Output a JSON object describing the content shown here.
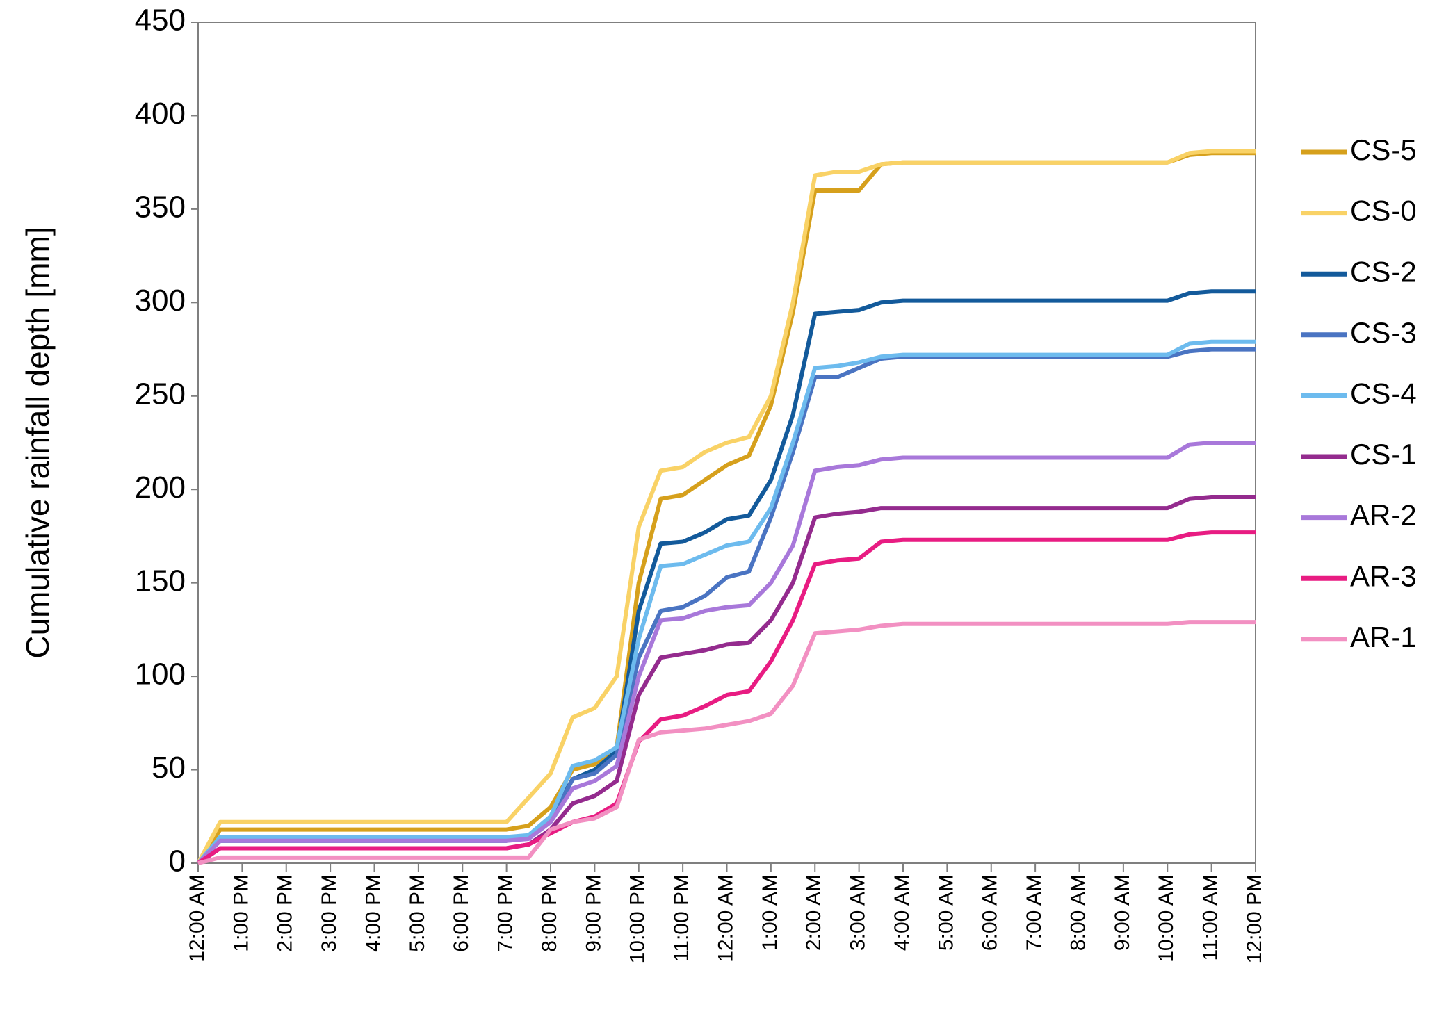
{
  "chart_data": {
    "type": "line",
    "y_label": "Cumulative rainfall depth [mm]",
    "categories": [
      "12:00 AM",
      null,
      "1:00 PM",
      null,
      "2:00 PM",
      null,
      "3:00 PM",
      null,
      "4:00 PM",
      null,
      "5:00 PM",
      null,
      "6:00 PM",
      null,
      "7:00 PM",
      null,
      "8:00 PM",
      null,
      "9:00 PM",
      null,
      "10:00 PM",
      null,
      "11:00 PM",
      null,
      "12:00 AM",
      null,
      "1:00 AM",
      null,
      "2:00 AM",
      null,
      "3:00 AM",
      null,
      "4:00 AM",
      null,
      "5:00 AM",
      null,
      "6:00 AM",
      null,
      "7:00 AM",
      null,
      "8:00 AM",
      null,
      "9:00 AM",
      null,
      "10:00 AM",
      null,
      "11:00 AM",
      null,
      "12:00 PM"
    ],
    "ylim": [
      0,
      450
    ],
    "yticks": [
      0,
      50,
      100,
      150,
      200,
      250,
      300,
      350,
      400,
      450
    ],
    "grid": false,
    "legend": "right",
    "series": [
      {
        "name": "CS-5",
        "color": "#d6a01c",
        "values": [
          0,
          18,
          18,
          18,
          18,
          18,
          18,
          18,
          18,
          18,
          18,
          18,
          18,
          18,
          18,
          20,
          30,
          50,
          53,
          62,
          150,
          195,
          197,
          205,
          213,
          218,
          245,
          295,
          360,
          360,
          360,
          374,
          375,
          375,
          375,
          375,
          375,
          375,
          375,
          375,
          375,
          375,
          375,
          375,
          375,
          379,
          380,
          380,
          380
        ]
      },
      {
        "name": "CS-0",
        "color": "#f9d266",
        "values": [
          0,
          22,
          22,
          22,
          22,
          22,
          22,
          22,
          22,
          22,
          22,
          22,
          22,
          22,
          22,
          35,
          48,
          78,
          83,
          100,
          180,
          210,
          212,
          220,
          225,
          228,
          250,
          300,
          368,
          370,
          370,
          374,
          375,
          375,
          375,
          375,
          375,
          375,
          375,
          375,
          375,
          375,
          375,
          375,
          375,
          380,
          381,
          381,
          381
        ]
      },
      {
        "name": "CS-2",
        "color": "#135a9b",
        "values": [
          0,
          12,
          12,
          12,
          12,
          12,
          12,
          12,
          12,
          12,
          12,
          12,
          12,
          12,
          12,
          14,
          25,
          45,
          50,
          60,
          135,
          171,
          172,
          177,
          184,
          186,
          205,
          240,
          294,
          295,
          296,
          300,
          301,
          301,
          301,
          301,
          301,
          301,
          301,
          301,
          301,
          301,
          301,
          301,
          301,
          305,
          306,
          306,
          306
        ]
      },
      {
        "name": "CS-3",
        "color": "#4a74c2",
        "values": [
          0,
          12,
          12,
          12,
          12,
          12,
          12,
          12,
          12,
          12,
          12,
          12,
          12,
          12,
          12,
          14,
          22,
          45,
          48,
          58,
          110,
          135,
          137,
          143,
          153,
          156,
          185,
          220,
          260,
          260,
          265,
          270,
          271,
          271,
          271,
          271,
          271,
          271,
          271,
          271,
          271,
          271,
          271,
          271,
          271,
          274,
          275,
          275,
          275
        ]
      },
      {
        "name": "CS-4",
        "color": "#6dbbee",
        "values": [
          0,
          14,
          14,
          14,
          14,
          14,
          14,
          14,
          14,
          14,
          14,
          14,
          14,
          14,
          14,
          15,
          25,
          52,
          55,
          62,
          120,
          159,
          160,
          165,
          170,
          172,
          190,
          225,
          265,
          266,
          268,
          271,
          272,
          272,
          272,
          272,
          272,
          272,
          272,
          272,
          272,
          272,
          272,
          272,
          272,
          278,
          279,
          279,
          279
        ]
      },
      {
        "name": "CS-1",
        "color": "#942b8e",
        "values": [
          0,
          8,
          8,
          8,
          8,
          8,
          8,
          8,
          8,
          8,
          8,
          8,
          8,
          8,
          8,
          10,
          18,
          32,
          36,
          44,
          90,
          110,
          112,
          114,
          117,
          118,
          130,
          150,
          185,
          187,
          188,
          190,
          190,
          190,
          190,
          190,
          190,
          190,
          190,
          190,
          190,
          190,
          190,
          190,
          190,
          195,
          196,
          196,
          196
        ]
      },
      {
        "name": "AR-2",
        "color": "#a878da",
        "values": [
          0,
          12,
          12,
          12,
          12,
          12,
          12,
          12,
          12,
          12,
          12,
          12,
          12,
          12,
          12,
          13,
          22,
          40,
          44,
          52,
          100,
          130,
          131,
          135,
          137,
          138,
          150,
          170,
          210,
          212,
          213,
          216,
          217,
          217,
          217,
          217,
          217,
          217,
          217,
          217,
          217,
          217,
          217,
          217,
          217,
          224,
          225,
          225,
          225
        ]
      },
      {
        "name": "AR-3",
        "color": "#e81c82",
        "values": [
          0,
          8,
          8,
          8,
          8,
          8,
          8,
          8,
          8,
          8,
          8,
          8,
          8,
          8,
          8,
          10,
          16,
          22,
          25,
          32,
          65,
          77,
          79,
          84,
          90,
          92,
          108,
          130,
          160,
          162,
          163,
          172,
          173,
          173,
          173,
          173,
          173,
          173,
          173,
          173,
          173,
          173,
          173,
          173,
          173,
          176,
          177,
          177,
          177
        ]
      },
      {
        "name": "AR-1",
        "color": "#f290c2",
        "values": [
          0,
          3,
          3,
          3,
          3,
          3,
          3,
          3,
          3,
          3,
          3,
          3,
          3,
          3,
          3,
          3,
          18,
          22,
          24,
          30,
          66,
          70,
          71,
          72,
          74,
          76,
          80,
          95,
          123,
          124,
          125,
          127,
          128,
          128,
          128,
          128,
          128,
          128,
          128,
          128,
          128,
          128,
          128,
          128,
          128,
          129,
          129,
          129,
          129
        ]
      }
    ]
  }
}
